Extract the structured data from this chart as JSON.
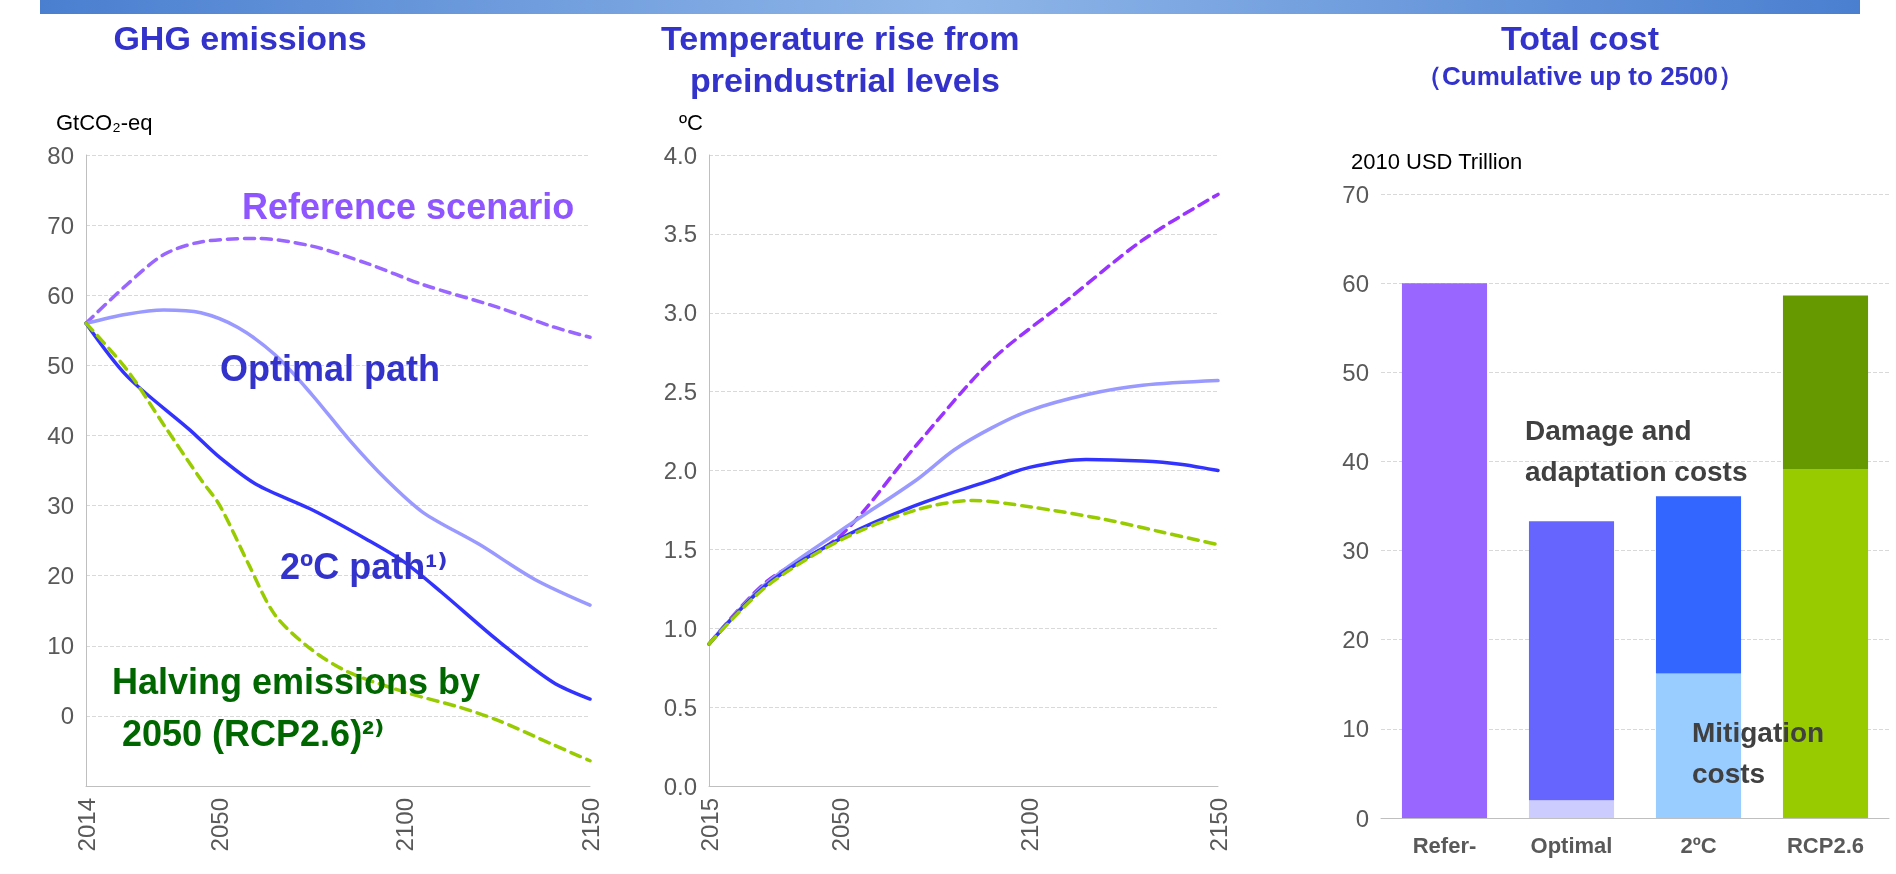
{
  "chart_data": [
    {
      "type": "line",
      "title": "GHG emissions",
      "ylabel": "GtCO₂-eq",
      "xlim": [
        2014,
        2150
      ],
      "xticks": [
        2014,
        2050,
        2100,
        2150
      ],
      "ylim": [
        -10,
        80
      ],
      "yticks": [
        {
          "value": -10,
          "label": null
        },
        0,
        10,
        20,
        30,
        40,
        50,
        60,
        70,
        80
      ],
      "grid": "y",
      "legend": false,
      "marker": "none",
      "series": [
        {
          "name": "Reference scenario",
          "color": "#9966ff",
          "line_style": "dashed",
          "x": [
            2014,
            2025,
            2035,
            2045,
            2060,
            2075,
            2090,
            2105,
            2125,
            2140,
            2150
          ],
          "values": [
            56,
            61.5,
            65.8,
            67.6,
            68.1,
            67,
            64.5,
            61.5,
            58.3,
            55.5,
            54
          ]
        },
        {
          "name": "Optimal path",
          "color": "#9999ff",
          "line_style": "solid",
          "x": [
            2014,
            2025,
            2035,
            2045,
            2055,
            2065,
            2075,
            2085,
            2095,
            2105,
            2120,
            2135,
            2150
          ],
          "values": [
            56,
            57.3,
            57.9,
            57.5,
            55.4,
            51.5,
            45.8,
            39.4,
            33.7,
            29,
            24.5,
            19.5,
            15.8
          ]
        },
        {
          "name": "2ºC path¹⁾",
          "color": "#3333ff",
          "line_style": "solid",
          "x": [
            2014,
            2025,
            2042,
            2050,
            2060,
            2075,
            2090,
            2100,
            2110,
            2125,
            2140,
            2150
          ],
          "values": [
            56,
            48.5,
            40.8,
            36.9,
            33,
            29.4,
            25.1,
            21.9,
            17.6,
            10.8,
            4.8,
            2.4
          ]
        },
        {
          "name": "Halving emissions by 2050 (RCP2.6)²⁾",
          "color": "#99cc00",
          "line_style": "dashed",
          "x": [
            2014,
            2025,
            2035,
            2045,
            2050,
            2058,
            2065,
            2075,
            2085,
            2100,
            2115,
            2125,
            2140,
            2150
          ],
          "values": [
            56,
            49.4,
            41.5,
            33.7,
            30.1,
            21.5,
            14.4,
            9.4,
            6.2,
            3.4,
            1.2,
            -0.6,
            -4.1,
            -6.4
          ]
        }
      ]
    },
    {
      "type": "line",
      "title": "Temperature rise from preindustrial levels",
      "ylabel": "ºC",
      "xlim": [
        2015,
        2150
      ],
      "xticks": [
        2015,
        2050,
        2100,
        2150
      ],
      "ylim": [
        0,
        4
      ],
      "yticks": [
        {
          "value": 0,
          "label": "0.0"
        },
        {
          "value": 0.5,
          "label": "0.5"
        },
        {
          "value": 1,
          "label": "1.0"
        },
        {
          "value": 1.5,
          "label": "1.5"
        },
        {
          "value": 2,
          "label": "2.0"
        },
        {
          "value": 2.5,
          "label": "2.5"
        },
        {
          "value": 3,
          "label": "3.0"
        },
        {
          "value": 3.5,
          "label": "3.5"
        },
        {
          "value": 4,
          "label": "4.0"
        }
      ],
      "grid": "y",
      "legend": false,
      "marker": "none",
      "series": [
        {
          "color": "#9933ff",
          "line_style": "dashed",
          "x": [
            2015,
            2030,
            2050,
            2070,
            2090,
            2110,
            2130,
            2150
          ],
          "values": [
            0.9,
            1.29,
            1.59,
            2.16,
            2.7,
            3.08,
            3.46,
            3.75
          ]
        },
        {
          "color": "#9999ff",
          "line_style": "solid",
          "x": [
            2015,
            2030,
            2050,
            2070,
            2080,
            2090,
            2100,
            2115,
            2130,
            2150
          ],
          "values": [
            0.9,
            1.28,
            1.62,
            1.94,
            2.13,
            2.27,
            2.38,
            2.48,
            2.54,
            2.57
          ]
        },
        {
          "color": "#3333ff",
          "line_style": "solid",
          "x": [
            2015,
            2030,
            2050,
            2070,
            2090,
            2100,
            2115,
            2130,
            2140,
            2150
          ],
          "values": [
            0.9,
            1.27,
            1.57,
            1.78,
            1.94,
            2.02,
            2.07,
            2.06,
            2.04,
            2
          ]
        },
        {
          "color": "#99cc00",
          "line_style": "dashed",
          "x": [
            2015,
            2030,
            2050,
            2070,
            2085,
            2100,
            2120,
            2135,
            2150
          ],
          "values": [
            0.9,
            1.26,
            1.56,
            1.75,
            1.81,
            1.77,
            1.69,
            1.61,
            1.53
          ]
        }
      ]
    },
    {
      "type": "bar",
      "title": "Total cost",
      "subtitle": "（Cumulative up to 2500）",
      "ylabel": "2010 USD Trillion",
      "stacked": true,
      "categories": [
        "Refer-",
        "Optimal",
        "2ºC",
        "RCP2.6"
      ],
      "ylim": [
        0,
        70
      ],
      "yticks": [
        0,
        10,
        20,
        30,
        40,
        50,
        60,
        70
      ],
      "grid": "y",
      "legend": false,
      "series": [
        {
          "name": "Mitigation costs",
          "colors": [
            "#9966ff",
            "#ccccff",
            "#99ccff",
            "#99cc00"
          ],
          "values": [
            0,
            2,
            16.2,
            39.1
          ]
        },
        {
          "name": "Damage and adaptation costs",
          "colors": [
            "#9966ff",
            "#6666ff",
            "#3366ff",
            "#669900"
          ],
          "values": [
            60,
            31.3,
            19.9,
            19.5
          ]
        }
      ]
    }
  ]
}
